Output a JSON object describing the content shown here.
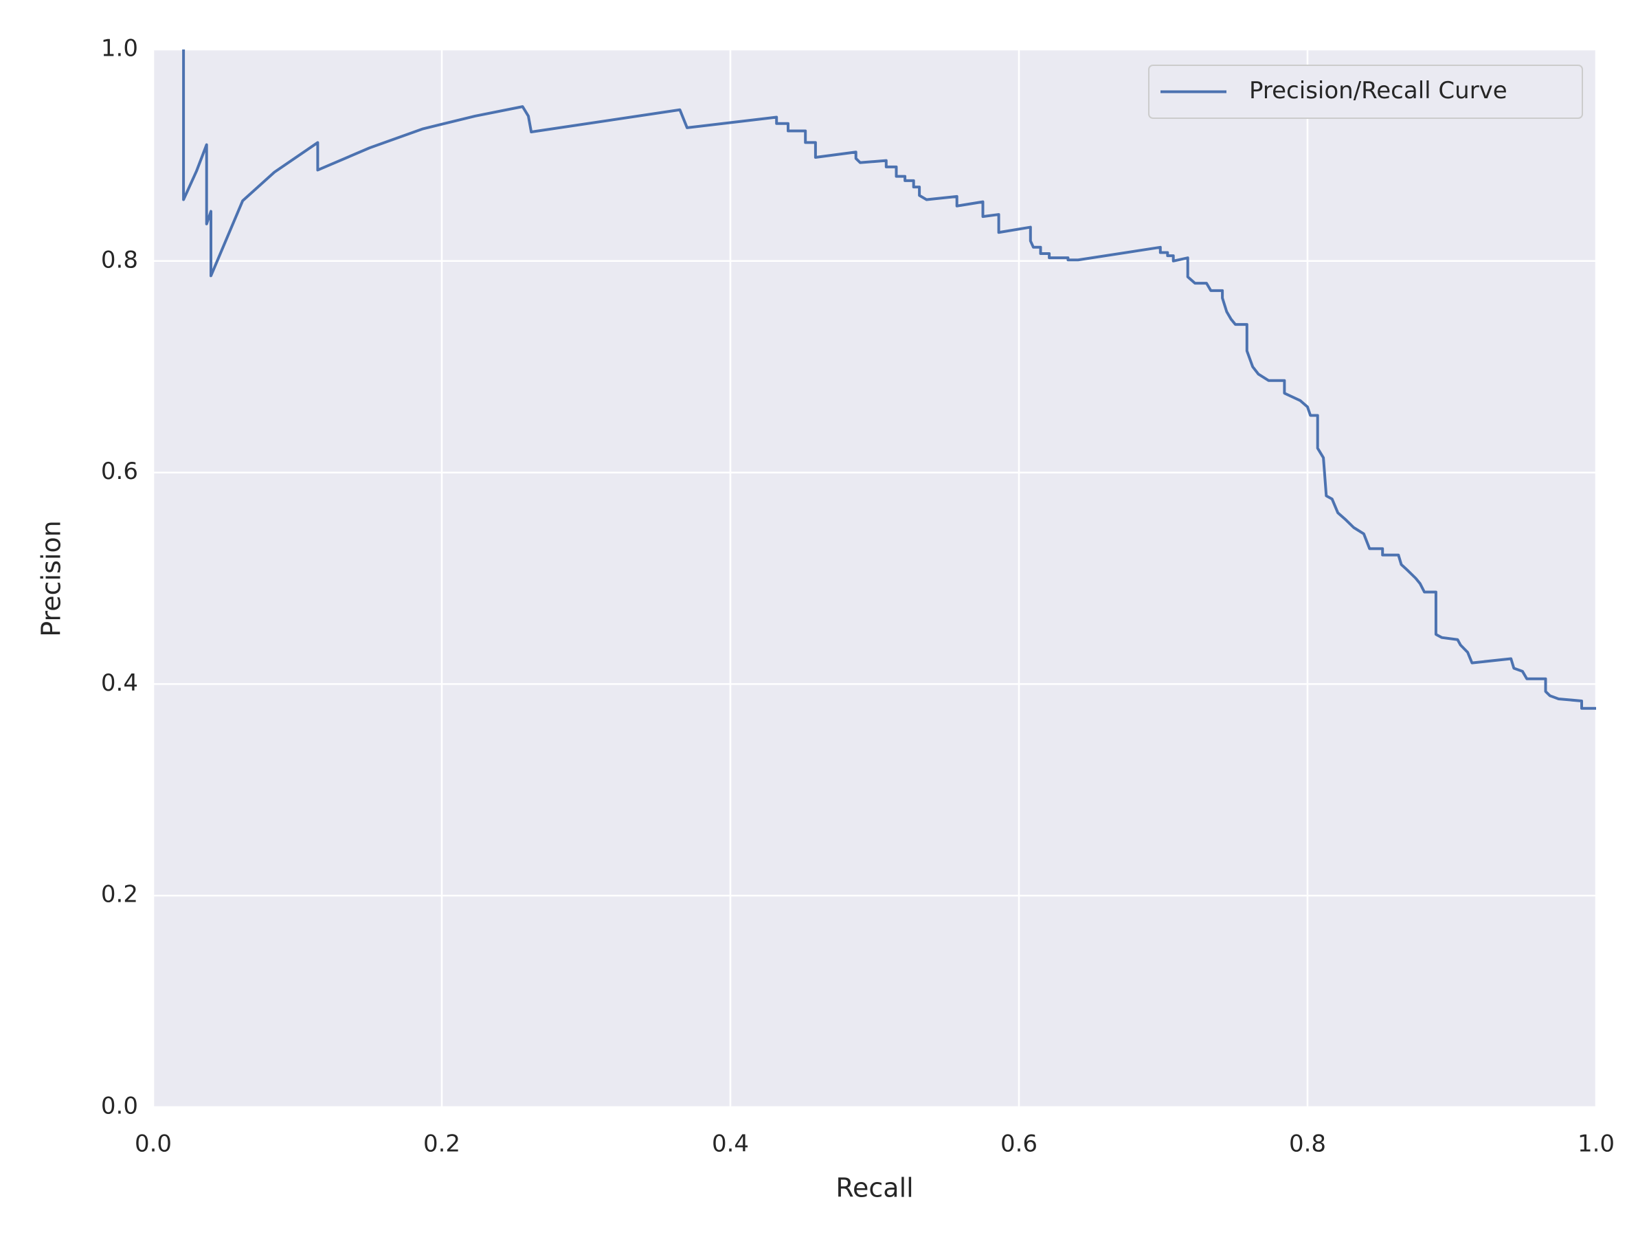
{
  "chart_data": {
    "type": "line",
    "xlabel": "Recall",
    "ylabel": "Precision",
    "x": [
      0.021,
      0.021,
      0.03,
      0.037,
      0.037,
      0.04,
      0.04,
      0.062,
      0.084,
      0.114,
      0.114,
      0.15,
      0.187,
      0.223,
      0.256,
      0.26,
      0.262,
      0.365,
      0.37,
      0.432,
      0.432,
      0.44,
      0.44,
      0.452,
      0.452,
      0.459,
      0.459,
      0.487,
      0.487,
      0.49,
      0.508,
      0.508,
      0.515,
      0.515,
      0.521,
      0.521,
      0.527,
      0.527,
      0.531,
      0.531,
      0.536,
      0.557,
      0.557,
      0.575,
      0.575,
      0.586,
      0.586,
      0.608,
      0.608,
      0.61,
      0.615,
      0.615,
      0.621,
      0.621,
      0.634,
      0.634,
      0.641,
      0.698,
      0.698,
      0.703,
      0.703,
      0.707,
      0.707,
      0.717,
      0.717,
      0.722,
      0.73,
      0.733,
      0.741,
      0.741,
      0.744,
      0.747,
      0.75,
      0.758,
      0.758,
      0.762,
      0.766,
      0.773,
      0.784,
      0.784,
      0.795,
      0.8,
      0.802,
      0.807,
      0.807,
      0.811,
      0.813,
      0.817,
      0.821,
      0.826,
      0.832,
      0.839,
      0.843,
      0.852,
      0.852,
      0.863,
      0.865,
      0.869,
      0.875,
      0.878,
      0.881,
      0.889,
      0.889,
      0.893,
      0.904,
      0.906,
      0.911,
      0.914,
      0.941,
      0.943,
      0.949,
      0.952,
      0.965,
      0.965,
      0.968,
      0.974,
      0.99,
      0.99,
      1.0
    ],
    "series": [
      {
        "name": "Precision/Recall Curve",
        "color": "#4c72b0",
        "values": [
          1.0,
          0.858,
          0.885,
          0.91,
          0.835,
          0.847,
          0.786,
          0.857,
          0.884,
          0.912,
          0.886,
          0.907,
          0.925,
          0.937,
          0.946,
          0.937,
          0.922,
          0.943,
          0.926,
          0.936,
          0.93,
          0.93,
          0.923,
          0.923,
          0.912,
          0.912,
          0.898,
          0.903,
          0.897,
          0.893,
          0.895,
          0.889,
          0.889,
          0.88,
          0.88,
          0.876,
          0.876,
          0.87,
          0.87,
          0.862,
          0.858,
          0.861,
          0.852,
          0.856,
          0.842,
          0.844,
          0.827,
          0.832,
          0.819,
          0.813,
          0.813,
          0.807,
          0.807,
          0.803,
          0.803,
          0.801,
          0.801,
          0.813,
          0.808,
          0.808,
          0.805,
          0.805,
          0.8,
          0.803,
          0.785,
          0.779,
          0.779,
          0.772,
          0.772,
          0.765,
          0.752,
          0.745,
          0.74,
          0.74,
          0.715,
          0.7,
          0.693,
          0.687,
          0.687,
          0.675,
          0.668,
          0.662,
          0.654,
          0.654,
          0.623,
          0.614,
          0.578,
          0.575,
          0.562,
          0.556,
          0.548,
          0.542,
          0.528,
          0.528,
          0.522,
          0.522,
          0.513,
          0.508,
          0.5,
          0.495,
          0.487,
          0.487,
          0.447,
          0.444,
          0.442,
          0.437,
          0.43,
          0.42,
          0.424,
          0.415,
          0.412,
          0.405,
          0.405,
          0.393,
          0.389,
          0.386,
          0.384,
          0.377,
          0.377
        ]
      }
    ],
    "xlim": [
      0,
      1
    ],
    "ylim": [
      0,
      1
    ],
    "xticks": [
      {
        "value": 0,
        "label": "0.0"
      },
      0.2,
      0.4,
      0.6,
      0.8,
      {
        "value": 1,
        "label": "1.0"
      }
    ],
    "yticks": [
      {
        "value": 0,
        "label": "0.0"
      },
      0.2,
      0.4,
      0.6,
      0.8,
      {
        "value": 1,
        "label": "1.0"
      }
    ],
    "grid": true,
    "legend": "upper right"
  }
}
